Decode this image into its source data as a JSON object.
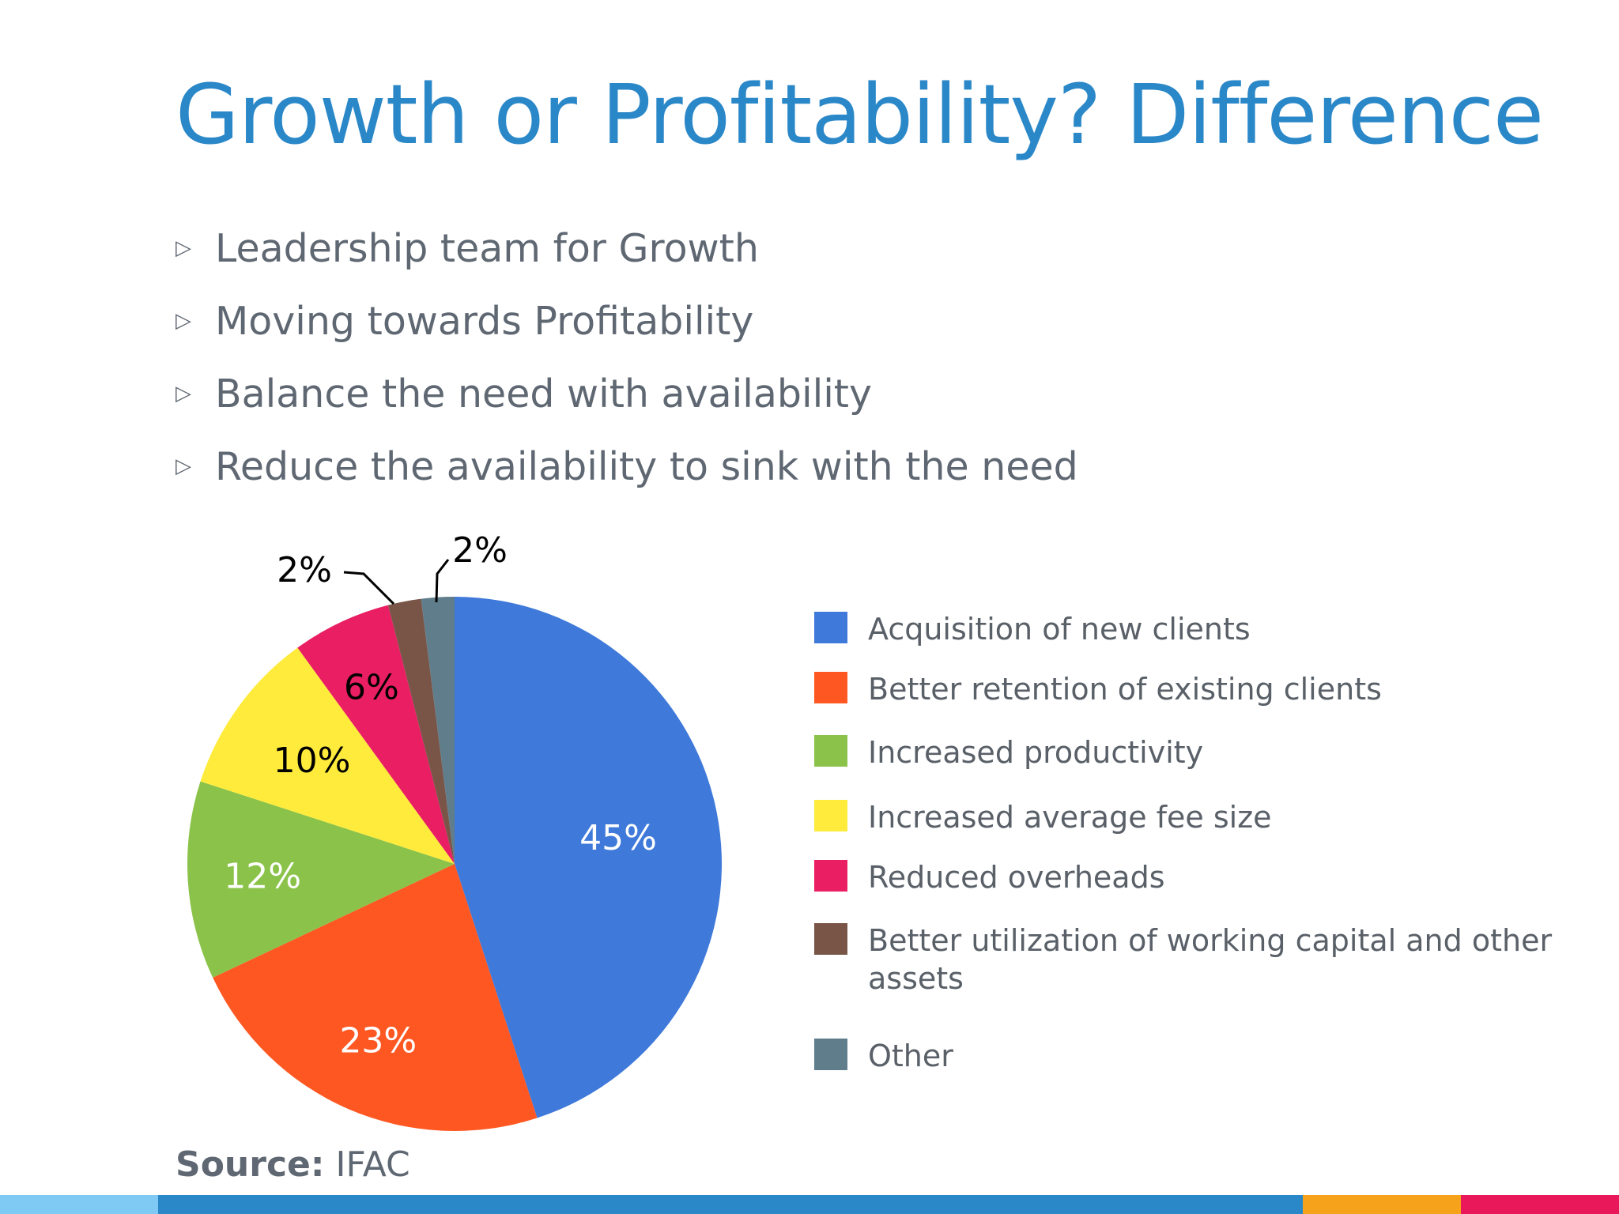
{
  "slide": {
    "title": "Growth or Profitability? Difference",
    "bullet_marker": "▷",
    "bullets": [
      "Leadership team for Growth",
      "Moving towards Profitability",
      "Balance the need with availability",
      "Reduce the availability to sink with the need"
    ],
    "source_label": "Source:",
    "source_value": "IFAC"
  },
  "colors": {
    "title": "#2b88c8",
    "text": "#5f6872",
    "bottom_bar": [
      "#7fcaf5",
      "#2b88c8",
      "#f7a21b",
      "#e8185a"
    ]
  },
  "chart_data": {
    "type": "pie",
    "start_angle_deg": 0,
    "direction": "clockwise",
    "legend_position": "right",
    "slices": [
      {
        "label": "Acquisition of new clients",
        "value": 45,
        "display": "45%",
        "color": "#3f79d9",
        "label_color": "#ffffff"
      },
      {
        "label": "Better retention of existing clients",
        "value": 23,
        "display": "23%",
        "color": "#ff5722",
        "label_color": "#ffffff"
      },
      {
        "label": "Increased productivity",
        "value": 12,
        "display": "12%",
        "color": "#8bc34a",
        "label_color": "#ffffff"
      },
      {
        "label": "Increased average fee size",
        "value": 10,
        "display": "10%",
        "color": "#ffeb3b",
        "label_color": "#000000"
      },
      {
        "label": "Reduced overheads",
        "value": 6,
        "display": "6%",
        "color": "#e91e63",
        "label_color": "#000000"
      },
      {
        "label": "Better utilization of working capital and other assets",
        "value": 2,
        "display": "2%",
        "color": "#795548",
        "label_color": "#000000"
      },
      {
        "label": "Other",
        "value": 2,
        "display": "2%",
        "color": "#607d8b",
        "label_color": "#000000"
      }
    ]
  }
}
